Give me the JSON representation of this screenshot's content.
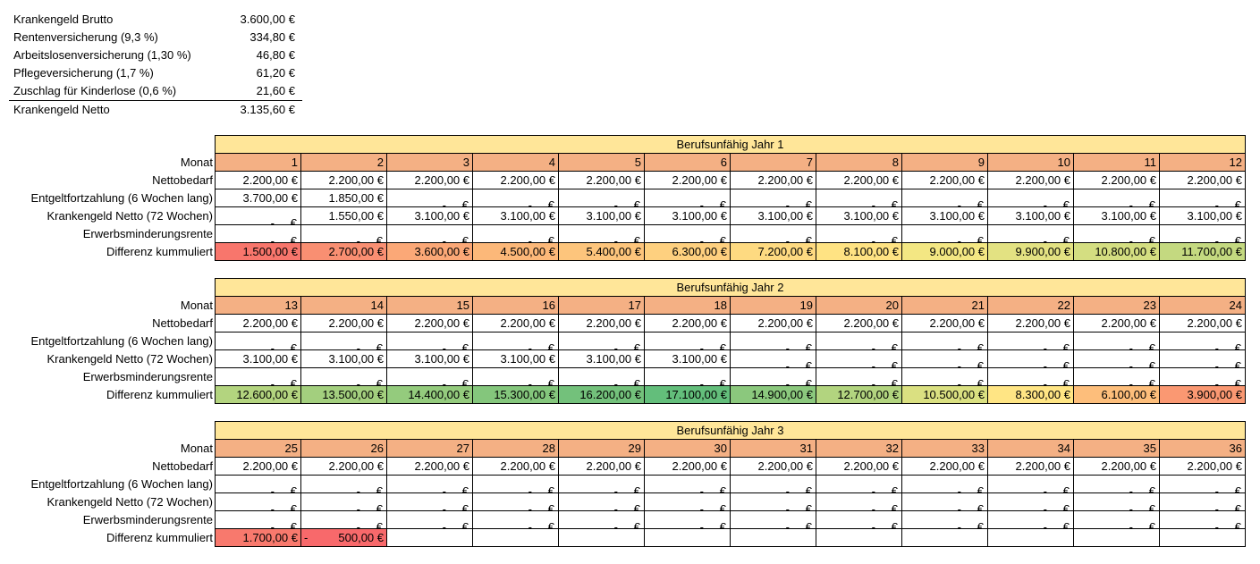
{
  "summary": [
    {
      "label": "Krankengeld Brutto",
      "value": "3.600,00 €"
    },
    {
      "label": "Rentenversicherung (9,3 %)",
      "value": "334,80 €"
    },
    {
      "label": "Arbeitslosenversicherung (1,30 %)",
      "value": "46,80 €"
    },
    {
      "label": "Pflegeversicherung (1,7 %)",
      "value": "61,20 €"
    },
    {
      "label": "Zuschlag für Kinderlose (0,6 %)",
      "value": "21,60 €"
    },
    {
      "label": "Krankengeld Netto",
      "value": "3.135,60 €"
    }
  ],
  "row_labels": {
    "monat": "Monat",
    "nettobedarf": "Nettobedarf",
    "entgelt": "Entgeltfortzahlung (6 Wochen lang)",
    "krankengeld": "Krankengeld Netto (72 Wochen)",
    "erwerb": "Erwerbsminderungsrente",
    "differenz": "Differenz kummuliert"
  },
  "empty_dash": "-",
  "euro_symbol": "€",
  "years": [
    {
      "title": "Berufsunfähig Jahr 1",
      "months": [
        "1",
        "2",
        "3",
        "4",
        "5",
        "6",
        "7",
        "8",
        "9",
        "10",
        "11",
        "12"
      ],
      "nettobedarf": [
        "2.200,00 €",
        "2.200,00 €",
        "2.200,00 €",
        "2.200,00 €",
        "2.200,00 €",
        "2.200,00 €",
        "2.200,00 €",
        "2.200,00 €",
        "2.200,00 €",
        "2.200,00 €",
        "2.200,00 €",
        "2.200,00 €"
      ],
      "entgelt": [
        "3.700,00 €",
        "1.850,00 €",
        null,
        null,
        null,
        null,
        null,
        null,
        null,
        null,
        null,
        null
      ],
      "krankengeld": [
        null,
        "1.550,00 €",
        "3.100,00 €",
        "3.100,00 €",
        "3.100,00 €",
        "3.100,00 €",
        "3.100,00 €",
        "3.100,00 €",
        "3.100,00 €",
        "3.100,00 €",
        "3.100,00 €",
        "3.100,00 €"
      ],
      "erwerb": [
        null,
        null,
        null,
        null,
        null,
        null,
        null,
        null,
        null,
        null,
        null,
        null
      ],
      "differenz": [
        {
          "text": "1.500,00 €",
          "color": "#F8766C"
        },
        {
          "text": "2.700,00 €",
          "color": "#F98F72"
        },
        {
          "text": "3.600,00 €",
          "color": "#FBA877"
        },
        {
          "text": "4.500,00 €",
          "color": "#FCB879"
        },
        {
          "text": "5.400,00 €",
          "color": "#FDC57C"
        },
        {
          "text": "6.300,00 €",
          "color": "#FED07F"
        },
        {
          "text": "7.200,00 €",
          "color": "#FEDA81"
        },
        {
          "text": "8.100,00 €",
          "color": "#FFE383"
        },
        {
          "text": "9.000,00 €",
          "color": "#F3E783"
        },
        {
          "text": "9.900,00 €",
          "color": "#E3E282"
        },
        {
          "text": "10.800,00 €",
          "color": "#D4DE81"
        },
        {
          "text": "11.700,00 €",
          "color": "#C4D980"
        }
      ]
    },
    {
      "title": "Berufsunfähig Jahr 2",
      "months": [
        "13",
        "14",
        "15",
        "16",
        "17",
        "18",
        "19",
        "20",
        "21",
        "22",
        "23",
        "24"
      ],
      "nettobedarf": [
        "2.200,00 €",
        "2.200,00 €",
        "2.200,00 €",
        "2.200,00 €",
        "2.200,00 €",
        "2.200,00 €",
        "2.200,00 €",
        "2.200,00 €",
        "2.200,00 €",
        "2.200,00 €",
        "2.200,00 €",
        "2.200,00 €"
      ],
      "entgelt": [
        null,
        null,
        null,
        null,
        null,
        null,
        null,
        null,
        null,
        null,
        null,
        null
      ],
      "krankengeld": [
        "3.100,00 €",
        "3.100,00 €",
        "3.100,00 €",
        "3.100,00 €",
        "3.100,00 €",
        "3.100,00 €",
        null,
        null,
        null,
        null,
        null,
        null
      ],
      "erwerb": [
        null,
        null,
        null,
        null,
        null,
        null,
        null,
        null,
        null,
        null,
        null,
        null
      ],
      "differenz": [
        {
          "text": "12.600,00 €",
          "color": "#B3D47F"
        },
        {
          "text": "13.500,00 €",
          "color": "#A3CF7E"
        },
        {
          "text": "14.400,00 €",
          "color": "#94CB7D"
        },
        {
          "text": "15.300,00 €",
          "color": "#84C67C"
        },
        {
          "text": "16.200,00 €",
          "color": "#73C17B"
        },
        {
          "text": "17.100,00 €",
          "color": "#63BE7B"
        },
        {
          "text": "14.900,00 €",
          "color": "#8BC87D"
        },
        {
          "text": "12.700,00 €",
          "color": "#B2D47F"
        },
        {
          "text": "10.500,00 €",
          "color": "#DAE081"
        },
        {
          "text": "8.300,00 €",
          "color": "#FFE584"
        },
        {
          "text": "6.100,00 €",
          "color": "#FDBE7B"
        },
        {
          "text": "3.900,00 €",
          "color": "#FA9872"
        }
      ]
    },
    {
      "title": "Berufsunfähig Jahr 3",
      "months": [
        "25",
        "26",
        "27",
        "28",
        "29",
        "30",
        "31",
        "32",
        "33",
        "34",
        "35",
        "36"
      ],
      "nettobedarf": [
        "2.200,00 €",
        "2.200,00 €",
        "2.200,00 €",
        "2.200,00 €",
        "2.200,00 €",
        "2.200,00 €",
        "2.200,00 €",
        "2.200,00 €",
        "2.200,00 €",
        "2.200,00 €",
        "2.200,00 €",
        "2.200,00 €"
      ],
      "entgelt": [
        null,
        null,
        null,
        null,
        null,
        null,
        null,
        null,
        null,
        null,
        null,
        null
      ],
      "krankengeld": [
        null,
        null,
        null,
        null,
        null,
        null,
        null,
        null,
        null,
        null,
        null,
        null
      ],
      "erwerb": [
        null,
        null,
        null,
        null,
        null,
        null,
        null,
        null,
        null,
        null,
        null,
        null
      ],
      "differenz": [
        {
          "text": "1.700,00 €",
          "color": "#F8796D"
        },
        {
          "text": "500,00 €",
          "color": "#F8696B",
          "negative": true
        },
        {
          "text": "",
          "color": ""
        },
        {
          "text": "",
          "color": ""
        },
        {
          "text": "",
          "color": ""
        },
        {
          "text": "",
          "color": ""
        },
        {
          "text": "",
          "color": ""
        },
        {
          "text": "",
          "color": ""
        },
        {
          "text": "",
          "color": ""
        },
        {
          "text": "",
          "color": ""
        },
        {
          "text": "",
          "color": ""
        },
        {
          "text": "",
          "color": ""
        }
      ]
    }
  ]
}
